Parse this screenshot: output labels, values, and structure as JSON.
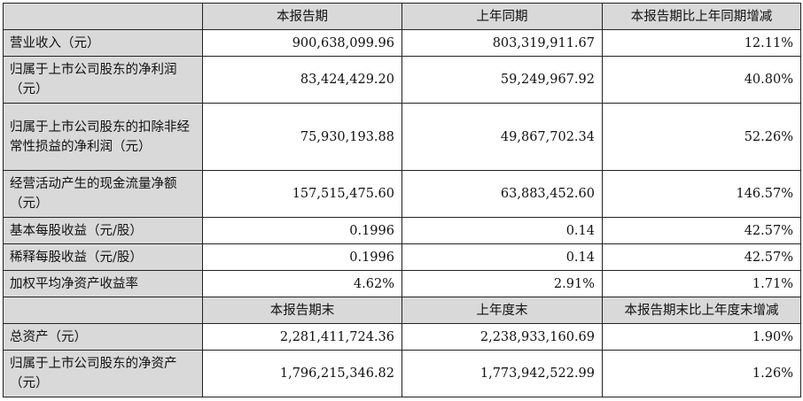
{
  "header1": [
    "",
    "本报告期",
    "上年同期",
    "本报告期比上年同期增减"
  ],
  "rows1": [
    {
      "label": "营业收入（元）",
      "current": "900,638,099.96",
      "prior": "803,319,911.67",
      "change": "12.11%"
    },
    {
      "label": "归属于上市公司股东的净利润（元）",
      "current": "83,424,429.20",
      "prior": "59,249,967.92",
      "change": "40.80%"
    },
    {
      "label": "归属于上市公司股东的扣除非经常性损益的净利润（元）",
      "current": "75,930,193.88",
      "prior": "49,867,702.34",
      "change": "52.26%"
    },
    {
      "label": "经营活动产生的现金流量净额（元）",
      "current": "157,515,475.60",
      "prior": "63,883,452.60",
      "change": "146.57%"
    },
    {
      "label": "基本每股收益（元/股）",
      "current": "0.1996",
      "prior": "0.14",
      "change": "42.57%"
    },
    {
      "label": "稀释每股收益（元/股）",
      "current": "0.1996",
      "prior": "0.14",
      "change": "42.57%"
    },
    {
      "label": "加权平均净资产收益率",
      "current": "4.62%",
      "prior": "2.91%",
      "change": "1.71%"
    }
  ],
  "header2": [
    "",
    "本报告期末",
    "上年度末",
    "本报告期末比上年度末增减"
  ],
  "rows2": [
    {
      "label": "总资产（元）",
      "current": "2,281,411,724.36",
      "prior": "2,238,933,160.69",
      "change": "1.90%"
    },
    {
      "label": "归属于上市公司股东的净资产（元）",
      "current": "1,796,215,346.82",
      "prior": "1,773,942,522.99",
      "change": "1.26%"
    }
  ]
}
